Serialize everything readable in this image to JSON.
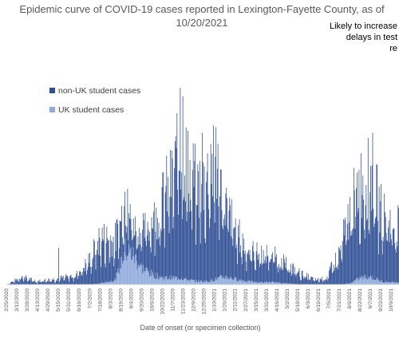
{
  "chart_data": {
    "type": "bar",
    "stacked": true,
    "title": "Epidemic curve of COVID-19 cases reported in Lexington-Fayette County, as of 10/20/2021",
    "title_lines": [
      "Epidemic curve of COVID-19 cases reported in Lexington-Fayette County, as of",
      "10/20/2021"
    ],
    "annotation": "Likely to increase due to delays in test reporting",
    "annotation_lines": [
      "Likely to increase",
      "delays in test",
      "re"
    ],
    "xlabel": "Date of onset (or specimen collection)",
    "ylabel": "",
    "legend": {
      "placement": "upper-left",
      "entries": [
        "non-UK student cases",
        "UK student cases"
      ]
    },
    "grid": false,
    "colors": {
      "non_uk": "#2f4f95",
      "uk": "#8faadc"
    },
    "x_start": "2/25/2020",
    "x_end": "10/20/2021",
    "tick_labels": [
      "2/25/2020",
      "3/12/2020",
      "3/28/2020",
      "4/13/2020",
      "4/29/2020",
      "5/15/2020",
      "5/31/2020",
      "6/16/2020",
      "7/2/2020",
      "7/18/2020",
      "8/3/2020",
      "8/19/2020",
      "9/4/2020",
      "9/20/2020",
      "10/6/2020",
      "10/22/2020",
      "11/7/2020",
      "11/23/2020",
      "12/9/2020",
      "12/25/2020",
      "1/10/2021",
      "1/26/2021",
      "2/11/2021",
      "2/27/2021",
      "3/15/2021",
      "3/31/2021",
      "4/16/2021",
      "5/2/2021",
      "5/18/2021",
      "6/3/2021",
      "6/19/2021",
      "7/5/2021",
      "7/21/2021",
      "8/6/2021",
      "8/22/2021",
      "9/7/2021",
      "9/23/2021",
      "10/9/2021"
    ],
    "series": [
      {
        "name": "non-UK student cases",
        "key": "non_uk"
      },
      {
        "name": "UK student cases",
        "key": "uk"
      }
    ],
    "trend_points": [
      {
        "x": "2/25/2020",
        "non_uk": 0,
        "uk": 0
      },
      {
        "x": "3/20/2020",
        "non_uk": 14,
        "uk": 0
      },
      {
        "x": "4/10/2020",
        "non_uk": 6,
        "uk": 0
      },
      {
        "x": "5/10/2020",
        "non_uk": 10,
        "uk": 0
      },
      {
        "x": "6/10/2020",
        "non_uk": 16,
        "uk": 0
      },
      {
        "x": "7/1/2020",
        "non_uk": 42,
        "uk": 0
      },
      {
        "x": "7/18/2020",
        "non_uk": 80,
        "uk": 2
      },
      {
        "x": "8/10/2020",
        "non_uk": 70,
        "uk": 8
      },
      {
        "x": "8/25/2020",
        "non_uk": 80,
        "uk": 60
      },
      {
        "x": "9/5/2020",
        "non_uk": 50,
        "uk": 55
      },
      {
        "x": "9/20/2020",
        "non_uk": 60,
        "uk": 30
      },
      {
        "x": "10/6/2020",
        "non_uk": 95,
        "uk": 18
      },
      {
        "x": "10/22/2020",
        "non_uk": 135,
        "uk": 12
      },
      {
        "x": "11/7/2020",
        "non_uk": 175,
        "uk": 12
      },
      {
        "x": "11/20/2020",
        "non_uk": 225,
        "uk": 12
      },
      {
        "x": "12/1/2020",
        "non_uk": 190,
        "uk": 8
      },
      {
        "x": "12/15/2020",
        "non_uk": 165,
        "uk": 6
      },
      {
        "x": "1/1/2021",
        "non_uk": 185,
        "uk": 6
      },
      {
        "x": "1/12/2021",
        "non_uk": 200,
        "uk": 10
      },
      {
        "x": "1/26/2021",
        "non_uk": 130,
        "uk": 14
      },
      {
        "x": "2/11/2021",
        "non_uk": 85,
        "uk": 10
      },
      {
        "x": "3/1/2021",
        "non_uk": 55,
        "uk": 6
      },
      {
        "x": "3/20/2021",
        "non_uk": 50,
        "uk": 4
      },
      {
        "x": "4/10/2021",
        "non_uk": 48,
        "uk": 4
      },
      {
        "x": "5/1/2021",
        "non_uk": 32,
        "uk": 2
      },
      {
        "x": "5/25/2021",
        "non_uk": 18,
        "uk": 0
      },
      {
        "x": "6/15/2021",
        "non_uk": 8,
        "uk": 0
      },
      {
        "x": "7/1/2021",
        "non_uk": 12,
        "uk": 0
      },
      {
        "x": "7/21/2021",
        "non_uk": 55,
        "uk": 0
      },
      {
        "x": "8/6/2021",
        "non_uk": 125,
        "uk": 2
      },
      {
        "x": "8/22/2021",
        "non_uk": 165,
        "uk": 12
      },
      {
        "x": "9/7/2021",
        "non_uk": 175,
        "uk": 14
      },
      {
        "x": "9/23/2021",
        "non_uk": 120,
        "uk": 6
      },
      {
        "x": "10/9/2021",
        "non_uk": 105,
        "uk": 4
      },
      {
        "x": "10/20/2021",
        "non_uk": 95,
        "uk": 4
      }
    ],
    "peaks": [
      {
        "x": "5/15/2020",
        "total": 65
      },
      {
        "x": "8/29/2020",
        "total": 170
      },
      {
        "x": "11/18/2020",
        "total": 350
      },
      {
        "x": "11/13/2020",
        "total": 305
      },
      {
        "x": "11/22/2020",
        "total": 335
      },
      {
        "x": "12/22/2020",
        "total": 270
      },
      {
        "x": "1/4/2021",
        "total": 250
      },
      {
        "x": "1/12/2021",
        "total": 280
      },
      {
        "x": "9/10/2021",
        "total": 270
      }
    ],
    "ylim": [
      0,
      370
    ]
  }
}
